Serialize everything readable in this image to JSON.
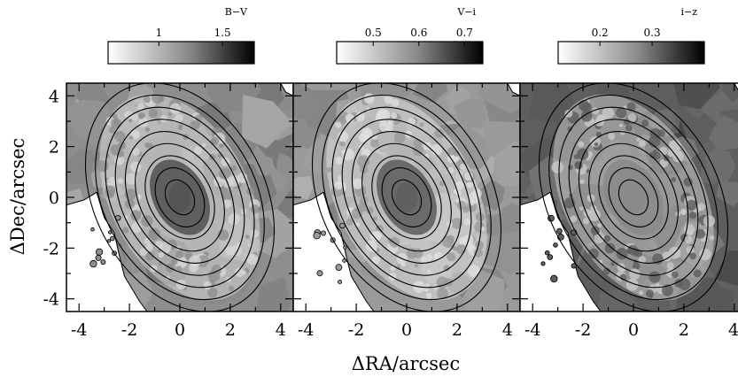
{
  "chart_data": {
    "type": "heatmap",
    "xlabel": "ΔRA/arcsec",
    "ylabel": "ΔDec/arcsec",
    "xlim": [
      -4.5,
      4.5
    ],
    "ylim": [
      -4.5,
      4.5
    ],
    "xticks": [
      "-4",
      "-2",
      "0",
      "2",
      "4"
    ],
    "yticks": [
      "-4",
      "-2",
      "0",
      "2",
      "4"
    ],
    "contour_levels": 9,
    "panels": [
      {
        "colorbar_title": "B−V",
        "colorbar_ticks": [
          1,
          1.5
        ],
        "colorbar_tick_labels": [
          "1",
          "1.5"
        ],
        "colorbar_range": [
          0.6,
          1.75
        ],
        "background_gray": "#8e8e8e",
        "bulge_gray": "#555555",
        "ring_gray": "#d6d6d6"
      },
      {
        "colorbar_title": "V−i",
        "colorbar_ticks": [
          0.5,
          0.6,
          0.7
        ],
        "colorbar_tick_labels": [
          "0.5",
          "0.6",
          "0.7"
        ],
        "colorbar_range": [
          0.42,
          0.74
        ],
        "background_gray": "#9a9a9a",
        "bulge_gray": "#606060",
        "ring_gray": "#dedede"
      },
      {
        "colorbar_title": "i−z",
        "colorbar_ticks": [
          0.2,
          0.3
        ],
        "colorbar_tick_labels": [
          "0.2",
          "0.3"
        ],
        "colorbar_range": [
          0.12,
          0.4
        ],
        "background_gray": "#5e5e5e",
        "bulge_gray": "#8a8a8a",
        "ring_gray": "#c9c9c9"
      }
    ]
  }
}
